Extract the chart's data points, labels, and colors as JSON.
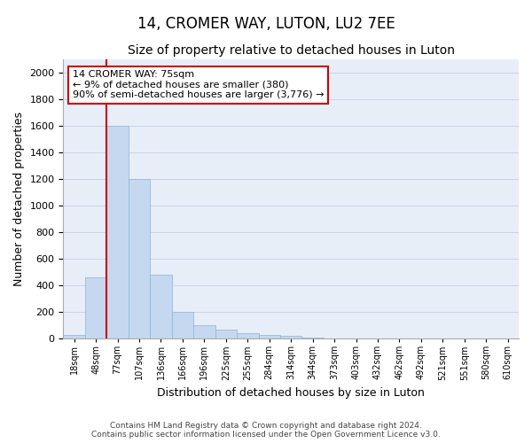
{
  "title": "14, CROMER WAY, LUTON, LU2 7EE",
  "subtitle": "Size of property relative to detached houses in Luton",
  "xlabel": "Distribution of detached houses by size in Luton",
  "ylabel": "Number of detached properties",
  "footer_line1": "Contains HM Land Registry data © Crown copyright and database right 2024.",
  "footer_line2": "Contains public sector information licensed under the Open Government Licence v3.0.",
  "annotation_line1": "14 CROMER WAY: 75sqm",
  "annotation_line2": "← 9% of detached houses are smaller (380)",
  "annotation_line3": "90% of semi-detached houses are larger (3,776) →",
  "bar_categories": [
    "18sqm",
    "48sqm",
    "77sqm",
    "107sqm",
    "136sqm",
    "166sqm",
    "196sqm",
    "225sqm",
    "255sqm",
    "284sqm",
    "314sqm",
    "344sqm",
    "373sqm",
    "403sqm",
    "432sqm",
    "462sqm",
    "492sqm",
    "521sqm",
    "551sqm",
    "580sqm",
    "610sqm"
  ],
  "bar_values": [
    30,
    460,
    1600,
    1200,
    480,
    200,
    100,
    65,
    40,
    30,
    20,
    10,
    0,
    0,
    0,
    0,
    0,
    0,
    0,
    0,
    0
  ],
  "bar_color": "#c5d8f0",
  "bar_edge_color": "#8ab4d8",
  "ylim": [
    0,
    2100
  ],
  "yticks": [
    0,
    200,
    400,
    600,
    800,
    1000,
    1200,
    1400,
    1600,
    1800,
    2000
  ],
  "grid_color": "#c8d4e8",
  "background_color": "#e8eef8",
  "red_line_color": "#cc0000",
  "annotation_box_color": "#cc0000"
}
